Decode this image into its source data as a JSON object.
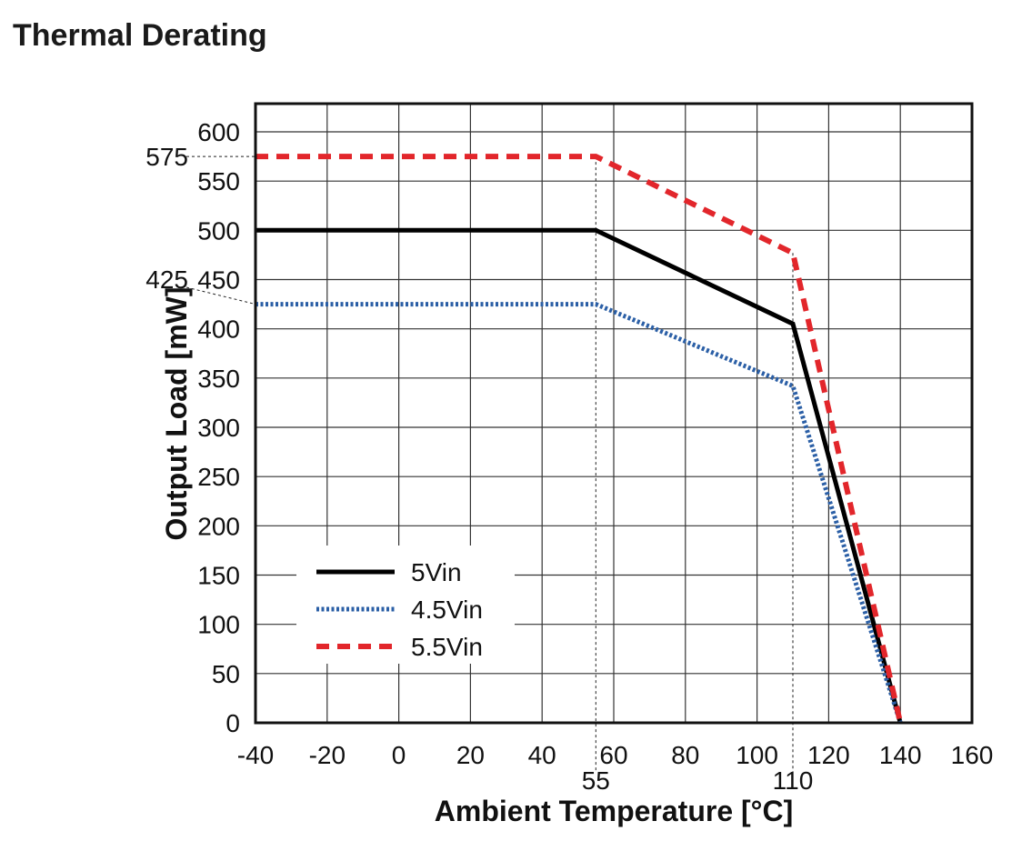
{
  "page": {
    "title": "Thermal Derating"
  },
  "chart_data": {
    "type": "line",
    "title": "Thermal Derating",
    "xlabel": "Ambient Temperature [°C]",
    "ylabel": "Output Load [mW]",
    "xlim": [
      -40,
      160
    ],
    "ylim": [
      0,
      600
    ],
    "x_ticks": [
      -40,
      -20,
      0,
      20,
      40,
      60,
      80,
      100,
      120,
      140,
      160
    ],
    "y_ticks": [
      0,
      50,
      100,
      150,
      200,
      250,
      300,
      350,
      400,
      450,
      500,
      550,
      600
    ],
    "grid": true,
    "legend_position": "lower-left",
    "series": [
      {
        "name": "5Vin",
        "style": "solid",
        "color": "#000000",
        "x": [
          -40,
          55,
          110,
          140
        ],
        "y": [
          500,
          500,
          405,
          0
        ]
      },
      {
        "name": "4.5Vin",
        "style": "dotted",
        "color": "#2b5fa6",
        "x": [
          -40,
          55,
          110,
          140
        ],
        "y": [
          425,
          425,
          342,
          0
        ]
      },
      {
        "name": "5.5Vin",
        "style": "dashed",
        "color": "#e2262b",
        "x": [
          -40,
          55,
          110,
          140
        ],
        "y": [
          575,
          575,
          477,
          0
        ]
      }
    ],
    "reference_lines": {
      "x": [
        55,
        110
      ],
      "y": [
        575,
        425
      ]
    }
  }
}
